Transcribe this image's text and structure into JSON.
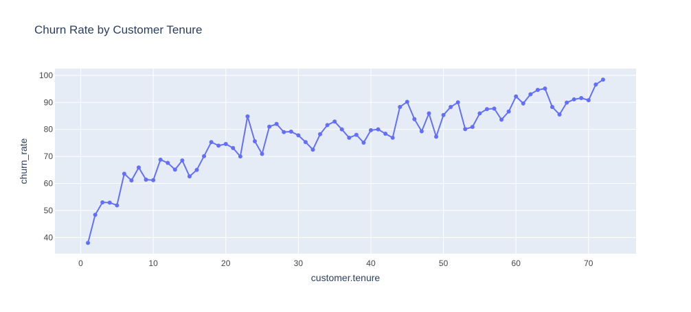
{
  "chart_data": {
    "type": "line",
    "title": "Churn Rate by Customer Tenure",
    "xlabel": "customer.tenure",
    "ylabel": "churn_rate",
    "xlim": [
      -3.55,
      76.55
    ],
    "ylim": [
      34.0,
      102.5
    ],
    "xticks": [
      0,
      10,
      20,
      30,
      40,
      50,
      60,
      70
    ],
    "yticks": [
      40,
      50,
      60,
      70,
      80,
      90,
      100
    ],
    "grid": true,
    "colors": {
      "line": "#636efa",
      "plot_bg": "#e5ecf6",
      "grid": "#ffffff",
      "text": "#2a3f5f"
    },
    "series": [
      {
        "x": [
          1,
          2,
          3,
          4,
          5,
          6,
          7,
          8,
          9,
          10,
          11,
          12,
          13,
          14,
          15,
          16,
          17,
          18,
          19,
          20,
          21,
          22,
          23,
          24,
          25,
          26,
          27,
          28,
          29,
          30,
          31,
          32,
          33,
          34,
          35,
          36,
          37,
          38,
          39,
          40,
          41,
          42,
          43,
          44,
          45,
          46,
          47,
          48,
          49,
          50,
          51,
          52,
          53,
          54,
          55,
          56,
          57,
          58,
          59,
          60,
          61,
          62,
          63,
          64,
          65,
          66,
          67,
          68,
          69,
          70,
          71,
          72
        ],
        "values": [
          38.0,
          48.4,
          53.0,
          52.9,
          51.9,
          63.6,
          61.1,
          65.9,
          61.4,
          61.2,
          68.8,
          67.6,
          65.1,
          68.5,
          62.6,
          65.0,
          70.1,
          75.3,
          74.0,
          74.6,
          73.1,
          70.0,
          84.8,
          75.6,
          70.9,
          81.0,
          82.0,
          79.0,
          79.2,
          77.8,
          75.3,
          72.5,
          78.2,
          81.6,
          82.9,
          80.0,
          76.9,
          78.0,
          75.1,
          79.7,
          80.0,
          78.4,
          76.9,
          88.3,
          90.2,
          83.8,
          79.3,
          85.9,
          77.3,
          85.3,
          88.3,
          90.0,
          80.1,
          80.9,
          85.9,
          87.5,
          87.7,
          83.6,
          86.6,
          92.2,
          89.6,
          93.0,
          94.6,
          95.1,
          88.3,
          85.5,
          89.9,
          91.1,
          91.6,
          90.8,
          96.6,
          98.4
        ]
      }
    ]
  }
}
